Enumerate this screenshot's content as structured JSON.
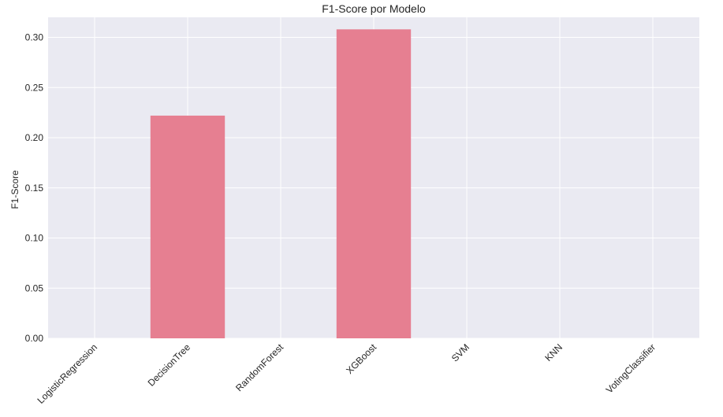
{
  "chart_data": {
    "type": "bar",
    "title": "F1-Score por Modelo",
    "xlabel": "",
    "ylabel": "F1-Score",
    "categories": [
      "LogisticRegression",
      "DecisionTree",
      "RandomForest",
      "XGBoost",
      "SVM",
      "KNN",
      "VotingClassifier"
    ],
    "values": [
      0.0,
      0.222,
      0.0,
      0.308,
      0.0,
      0.0,
      0.0
    ],
    "ylim": [
      0.0,
      0.32
    ],
    "yticks": [
      0.0,
      0.05,
      0.1,
      0.15,
      0.2,
      0.25,
      0.3
    ],
    "ytick_labels": [
      "0.00",
      "0.05",
      "0.10",
      "0.15",
      "0.20",
      "0.25",
      "0.30"
    ],
    "grid": true,
    "colors": {
      "bar": "#e67f91",
      "background": "#eaeaf2",
      "grid": "#ffffff"
    }
  }
}
